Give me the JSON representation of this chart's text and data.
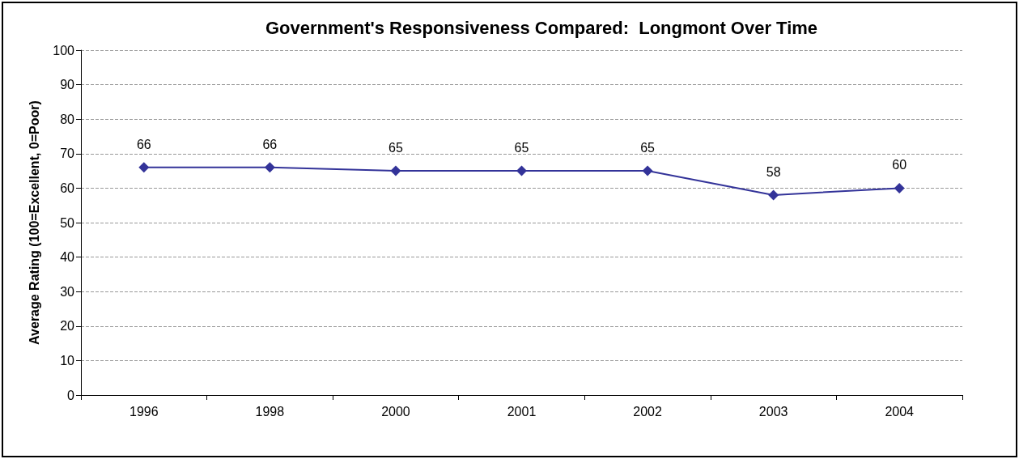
{
  "chart_data": {
    "type": "line",
    "title": "Government's Responsiveness Compared:  Longmont Over Time",
    "ylabel": "Average Rating (100=Excellent, 0=Poor)",
    "categories": [
      "1996",
      "1998",
      "2000",
      "2001",
      "2002",
      "2003",
      "2004"
    ],
    "series": [
      {
        "color": "#333399",
        "values": [
          66,
          66,
          65,
          65,
          65,
          58,
          60
        ]
      }
    ],
    "ylim": [
      0,
      100
    ],
    "yticks": [
      0,
      10,
      20,
      30,
      40,
      50,
      60,
      70,
      80,
      90,
      100
    ],
    "grid": "y",
    "marker": "diamond",
    "line_style": "solid",
    "data_labels": true
  }
}
